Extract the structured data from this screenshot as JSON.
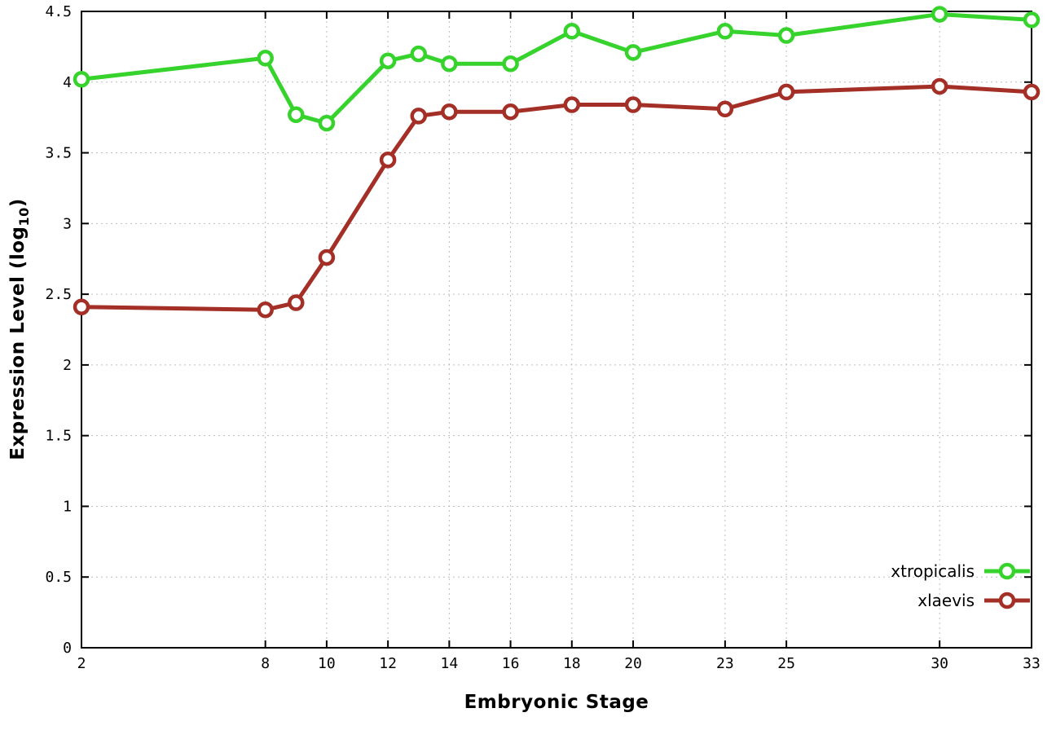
{
  "chart_data": {
    "type": "line",
    "title": "",
    "xlabel": "Embryonic Stage",
    "ylabel": "Expression Level (log10)",
    "ylabel_parts": {
      "prefix": "Expression Level (log",
      "sub": "10",
      "suffix": ")"
    },
    "xlim": [
      2,
      33
    ],
    "ylim": [
      0,
      4.5
    ],
    "grid": true,
    "legend_position": "bottom-right",
    "x": [
      2,
      8,
      9,
      10,
      12,
      13,
      14,
      16,
      18,
      20,
      23,
      25,
      30,
      33
    ],
    "xticks": [
      2,
      8,
      10,
      12,
      14,
      16,
      18,
      20,
      23,
      25,
      30,
      33
    ],
    "yticks": [
      0,
      0.5,
      1,
      1.5,
      2,
      2.5,
      3,
      3.5,
      4,
      4.5
    ],
    "series": [
      {
        "name": "xtropicalis",
        "color": "#36d32c",
        "values": [
          4.02,
          4.17,
          3.77,
          3.71,
          4.15,
          4.2,
          4.13,
          4.13,
          4.36,
          4.21,
          4.36,
          4.33,
          4.48,
          4.44
        ]
      },
      {
        "name": "xlaevis",
        "color": "#a32f26",
        "values": [
          2.41,
          2.39,
          2.44,
          2.76,
          3.45,
          3.76,
          3.79,
          3.79,
          3.84,
          3.84,
          3.81,
          3.93,
          3.97,
          3.93
        ]
      }
    ]
  }
}
